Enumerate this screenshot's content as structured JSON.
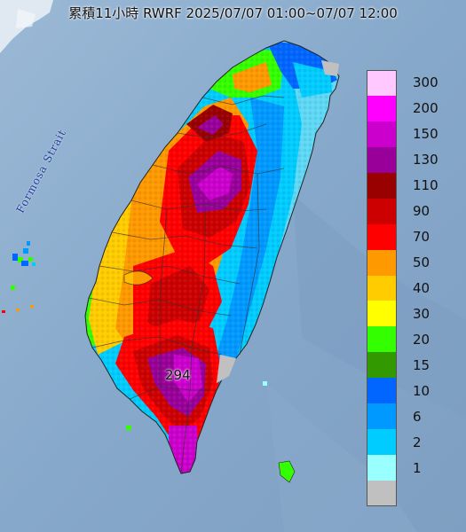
{
  "header": {
    "title": "累積11小時 RWRF 2025/07/07 01:00~07/07 12:00"
  },
  "map": {
    "strait_label": "Formosa Strait",
    "max_value_label": "294"
  },
  "legend": {
    "items": [
      {
        "label": "300",
        "color": "#ffc8ff"
      },
      {
        "label": "200",
        "color": "#ff00ff"
      },
      {
        "label": "150",
        "color": "#cc00cc"
      },
      {
        "label": "130",
        "color": "#990099"
      },
      {
        "label": "110",
        "color": "#990000"
      },
      {
        "label": "90",
        "color": "#cc0000"
      },
      {
        "label": "70",
        "color": "#ff0000"
      },
      {
        "label": "50",
        "color": "#ff9900"
      },
      {
        "label": "40",
        "color": "#ffcc00"
      },
      {
        "label": "30",
        "color": "#ffff00"
      },
      {
        "label": "20",
        "color": "#33ff00"
      },
      {
        "label": "15",
        "color": "#339900"
      },
      {
        "label": "10",
        "color": "#0066ff"
      },
      {
        "label": "6",
        "color": "#0099ff"
      },
      {
        "label": "2",
        "color": "#00ccff"
      },
      {
        "label": "1",
        "color": "#99ffff"
      },
      {
        "label": "",
        "color": "#c0c0c0"
      }
    ]
  }
}
